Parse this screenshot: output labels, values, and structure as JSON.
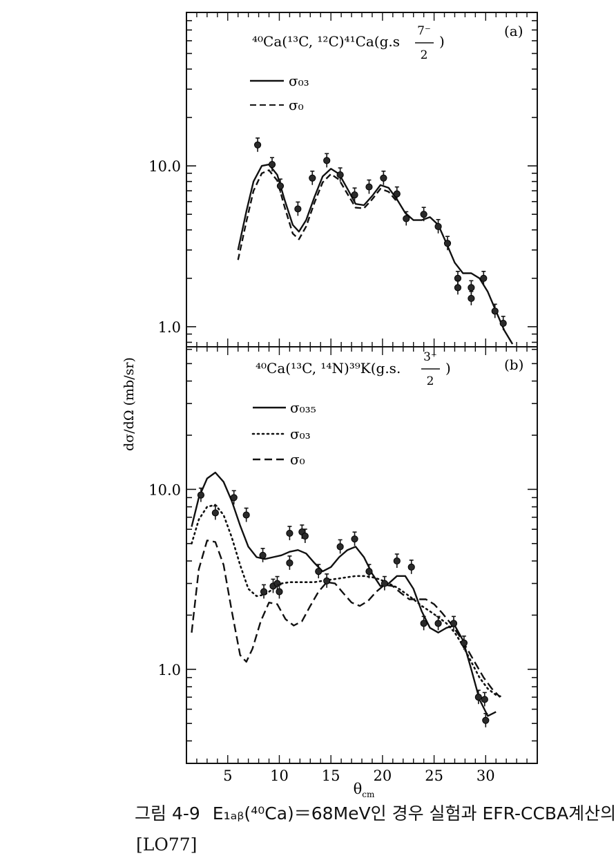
{
  "figure": {
    "ylabel": "dσ/dΩ (mb/sr)",
    "xlabel_main": "θ",
    "xlabel_sub": "cm",
    "x_ticks": [
      "5",
      "10",
      "15",
      "20",
      "25",
      "30"
    ]
  },
  "chart_data": [
    {
      "type": "line",
      "panel": "(a)",
      "title": "⁴⁰Ca(¹³C, ¹²C)⁴¹Ca(g.s 7⁻/2 )",
      "title_parts": {
        "reaction": "⁴⁰Ca(¹³C, ¹²C)⁴¹Ca(g.s",
        "num": "7⁻",
        "den": "2",
        "close": ")"
      },
      "y_scale": "log",
      "ylim": [
        0.75,
        90
      ],
      "xlim": [
        1,
        35
      ],
      "y_tick_labels": [
        {
          "value": 10,
          "label": "10.0"
        },
        {
          "value": 1,
          "label": "1.0"
        }
      ],
      "series": [
        {
          "name": "σ₀₃",
          "style": "solid",
          "x": [
            6,
            6.8,
            7.5,
            8.3,
            9.0,
            9.8,
            10.5,
            11.3,
            11.9,
            12.6,
            13.4,
            14.2,
            15.0,
            15.8,
            16.6,
            17.4,
            18.2,
            19.0,
            19.8,
            20.6,
            21.4,
            22.2,
            23.0,
            23.8,
            24.6,
            25.4,
            26.2,
            27.0,
            27.8,
            28.6,
            29.4,
            30.2,
            31.0,
            31.8,
            32.6
          ],
          "y": [
            3.0,
            5.2,
            8.0,
            10.0,
            10.2,
            8.8,
            6.2,
            4.3,
            3.9,
            4.6,
            6.4,
            8.6,
            9.6,
            8.9,
            7.2,
            5.8,
            5.7,
            6.5,
            7.6,
            7.3,
            6.2,
            5.1,
            4.6,
            4.6,
            4.8,
            4.3,
            3.3,
            2.5,
            2.15,
            2.15,
            2.0,
            1.65,
            1.25,
            0.95,
            0.78
          ]
        },
        {
          "name": "σ₀",
          "style": "dashed",
          "x": [
            6,
            6.8,
            7.5,
            8.3,
            9.0,
            9.8,
            10.5,
            11.3,
            11.9,
            12.6,
            13.4,
            14.2,
            15.0,
            15.8,
            16.6,
            17.4,
            18.2,
            19.0,
            19.8,
            20.6,
            21.4
          ],
          "y": [
            2.6,
            4.5,
            7.0,
            9.0,
            9.4,
            8.1,
            5.6,
            3.8,
            3.5,
            4.2,
            5.9,
            7.9,
            8.9,
            8.2,
            6.7,
            5.5,
            5.45,
            6.2,
            7.2,
            6.9,
            6.0
          ]
        },
        {
          "name": "data",
          "style": "points",
          "x": [
            7.9,
            9.3,
            10.1,
            11.8,
            13.2,
            14.6,
            15.9,
            17.3,
            18.7,
            20.1,
            21.4,
            22.3,
            24.0,
            25.4,
            26.3,
            27.3,
            27.3,
            28.6,
            28.6,
            29.8,
            30.9,
            31.7
          ],
          "y": [
            13.5,
            10.2,
            7.5,
            5.4,
            8.4,
            10.8,
            8.8,
            6.6,
            7.4,
            8.4,
            6.7,
            4.7,
            5.0,
            4.2,
            3.3,
            2.0,
            1.75,
            1.75,
            1.5,
            2.0,
            1.25,
            1.05
          ]
        }
      ]
    },
    {
      "type": "line",
      "panel": "(b)",
      "title": "⁴⁰Ca(¹³C, ¹⁴N)³⁹K(g.s. 3⁺/2 )",
      "title_parts": {
        "reaction": "⁴⁰Ca(¹³C, ¹⁴N)³⁹K(g.s.",
        "num": "3⁺",
        "den": "2",
        "close": ")"
      },
      "y_scale": "log",
      "ylim": [
        0.3,
        62
      ],
      "xlim": [
        1,
        35
      ],
      "y_tick_labels": [
        {
          "value": 10,
          "label": "10.0"
        },
        {
          "value": 1,
          "label": "1.0"
        }
      ],
      "series": [
        {
          "name": "σ₀₃₅",
          "style": "solid",
          "x": [
            1.5,
            2.2,
            3.0,
            3.8,
            4.6,
            5.4,
            6.2,
            7.0,
            7.8,
            8.6,
            9.4,
            10.2,
            11.0,
            11.8,
            12.6,
            13.4,
            14.2,
            15.0,
            15.8,
            16.6,
            17.4,
            18.2,
            19.0,
            19.8,
            20.6,
            21.4,
            22.2,
            23.0,
            23.8,
            24.6,
            25.4,
            26.2,
            27.0,
            27.8,
            28.6,
            29.4,
            30.2,
            31.0
          ],
          "y": [
            6.2,
            9.0,
            11.5,
            12.4,
            11.0,
            8.6,
            6.3,
            4.8,
            4.2,
            4.1,
            4.2,
            4.3,
            4.5,
            4.6,
            4.4,
            3.9,
            3.5,
            3.7,
            4.2,
            4.6,
            4.8,
            4.2,
            3.4,
            2.9,
            3.0,
            3.3,
            3.3,
            2.8,
            2.1,
            1.7,
            1.6,
            1.7,
            1.75,
            1.45,
            1.0,
            0.68,
            0.55,
            0.58
          ]
        },
        {
          "name": "σ₀₃",
          "style": "dotted",
          "x": [
            1.5,
            2.2,
            3.0,
            3.8,
            4.6,
            5.4,
            6.2,
            7.0,
            7.8,
            8.6,
            9.4,
            10.2,
            11.0,
            11.8,
            12.6,
            13.4,
            14.2,
            15.0,
            15.8,
            16.6,
            17.4,
            18.2,
            19.0,
            19.8,
            20.6,
            21.4,
            22.2,
            23.0,
            23.8,
            24.6,
            25.4,
            26.2,
            27.0,
            27.8,
            28.6,
            29.4,
            30.2,
            31.0,
            31.7
          ],
          "y": [
            5.0,
            6.8,
            8.0,
            8.2,
            7.2,
            5.4,
            3.8,
            2.8,
            2.55,
            2.6,
            2.8,
            3.0,
            3.05,
            3.05,
            3.05,
            3.05,
            3.1,
            3.15,
            3.2,
            3.25,
            3.3,
            3.3,
            3.25,
            3.15,
            3.0,
            2.85,
            2.65,
            2.45,
            2.25,
            2.1,
            1.95,
            1.8,
            1.6,
            1.35,
            1.1,
            0.9,
            0.78,
            0.72,
            0.7
          ]
        },
        {
          "name": "σ₀",
          "style": "dashed",
          "x": [
            1.5,
            2.2,
            3.0,
            3.8,
            4.6,
            5.4,
            6.2,
            6.8,
            7.4,
            8.2,
            9.0,
            9.8,
            10.6,
            11.4,
            12.2,
            13.0,
            13.8,
            14.6,
            15.4,
            16.2,
            17.0,
            17.8,
            18.6,
            19.4,
            20.2,
            21.0,
            21.8,
            22.6,
            23.4,
            24.2,
            25.0,
            25.8,
            26.6,
            27.4,
            28.2,
            29.0,
            29.8,
            30.6,
            31.4
          ],
          "y": [
            1.6,
            3.6,
            5.2,
            5.1,
            3.8,
            2.1,
            1.2,
            1.1,
            1.3,
            1.85,
            2.35,
            2.3,
            1.9,
            1.75,
            1.85,
            2.25,
            2.7,
            3.05,
            3.0,
            2.65,
            2.35,
            2.25,
            2.4,
            2.7,
            2.95,
            2.9,
            2.65,
            2.45,
            2.45,
            2.45,
            2.3,
            2.05,
            1.8,
            1.55,
            1.3,
            1.08,
            0.9,
            0.78,
            0.7
          ]
        },
        {
          "name": "data",
          "style": "points",
          "x": [
            2.4,
            3.8,
            5.6,
            6.8,
            8.4,
            8.5,
            9.4,
            9.8,
            10.0,
            11.0,
            11.0,
            12.2,
            12.5,
            13.8,
            14.6,
            15.9,
            17.3,
            18.7,
            20.2,
            21.4,
            22.8,
            24.0,
            25.4,
            26.9,
            27.9,
            29.3,
            29.9,
            30.0
          ],
          "y": [
            9.3,
            7.4,
            9.0,
            7.2,
            4.3,
            2.7,
            2.9,
            3.0,
            2.7,
            5.7,
            3.9,
            5.8,
            5.5,
            3.5,
            3.1,
            4.8,
            5.3,
            3.5,
            3.0,
            4.0,
            3.7,
            1.8,
            1.8,
            1.8,
            1.4,
            0.7,
            0.68,
            0.52
          ]
        }
      ]
    }
  ],
  "caption": {
    "label": "그림 4-9",
    "text": "E₁ₐᵦ(⁴⁰Ca)＝68MeV인 경우 실험과 EFR-CCBA계산의",
    "ref": "[LO77]"
  }
}
